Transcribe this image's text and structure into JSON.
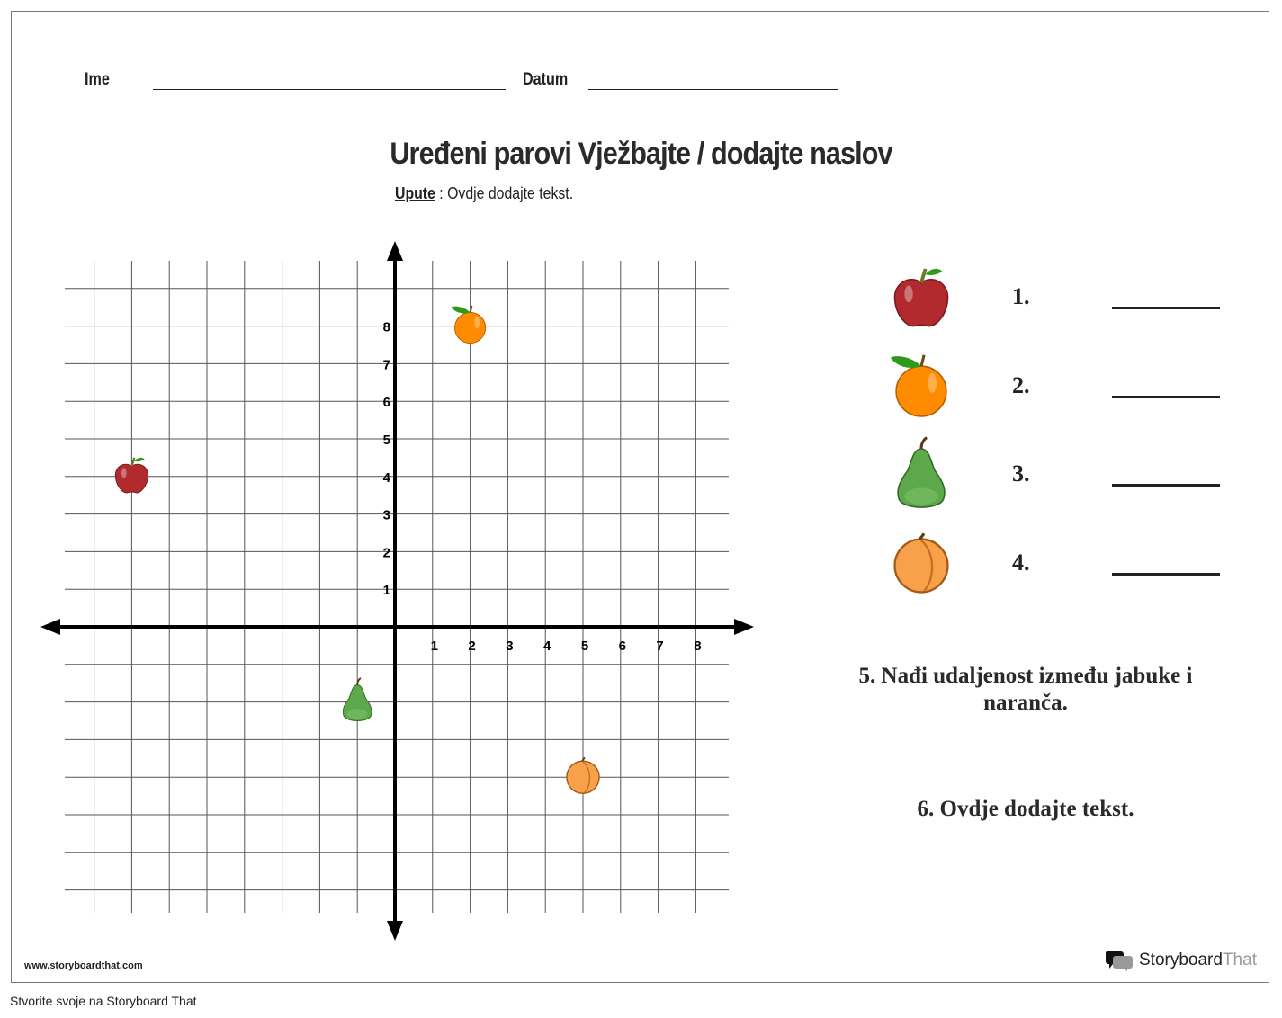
{
  "header": {
    "name_label": "Ime",
    "date_label": "Datum"
  },
  "title": "Uređeni parovi Vježbajte / dodajte naslov",
  "instructions": {
    "label": "Upute",
    "separator": " : ",
    "text": "Ovdje dodajte tekst."
  },
  "chart_data": {
    "type": "scatter",
    "grid": true,
    "xlim": [
      -8,
      8
    ],
    "ylim": [
      -7,
      9
    ],
    "x_tick_labels": [
      "1",
      "2",
      "3",
      "4",
      "5",
      "6",
      "7",
      "8"
    ],
    "y_tick_labels": [
      "1",
      "2",
      "3",
      "4",
      "5",
      "6",
      "7",
      "8"
    ],
    "points": [
      {
        "icon": "apple-icon",
        "x": -7,
        "y": 4
      },
      {
        "icon": "orange-icon",
        "x": 2,
        "y": 8
      },
      {
        "icon": "pear-icon",
        "x": -1,
        "y": -2
      },
      {
        "icon": "peach-icon",
        "x": 5,
        "y": -4
      }
    ]
  },
  "answers": [
    {
      "icon": "apple-icon",
      "label": "1."
    },
    {
      "icon": "orange-icon",
      "label": "2."
    },
    {
      "icon": "pear-icon",
      "label": "3."
    },
    {
      "icon": "peach-icon",
      "label": "4."
    }
  ],
  "questions": {
    "q5": "5. Nađi udaljenost između jabuke i naranča.",
    "q6": "6. Ovdje dodajte tekst."
  },
  "footer": {
    "website": "www.storyboardthat.com",
    "logo_part1": "Storyboard",
    "logo_part2": "That",
    "credit": "Stvorite svoje na Storyboard That"
  },
  "colors": {
    "apple": "#b22a2e",
    "orange": "#ff8c00",
    "pear": "#5ca84a",
    "peach": "#f9a04a",
    "leaf": "#2e9a1c"
  }
}
